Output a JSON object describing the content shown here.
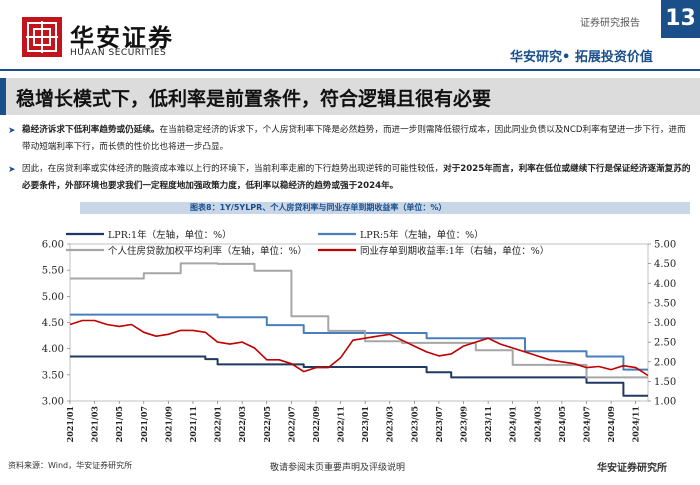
{
  "header": {
    "brand_cn": "华安证券",
    "brand_en": "HUAAN SECURITIES",
    "report_type": "证券研究报告",
    "page_number": "13",
    "slogan": "华安研究• 拓展投资价值",
    "accent_color": "#1a4f8a",
    "brand_color": "#c4141b"
  },
  "title": "稳增长模式下，低利率是前置条件，符合逻辑且很有必要",
  "bullets": [
    {
      "bold": "稳经济诉求下低利率趋势或仍延续。",
      "text": "在当前稳定经济的诉求下，个人房贷利率下降是必然趋势，而进一步则需降低银行成本，因此同业负债以及NCD利率有望进一步下行，进而带动短端利率下行，而长债的性价比也将进一步凸显。"
    },
    {
      "text_pre": "因此，在房贷利率或实体经济的融资成本难以上行的环境下，当前利率走廊的下行趋势出现逆转的可能性较低，",
      "bold": "对于2025年而言，利率在低位或继续下行是保证经济逐渐复苏的必要条件，外部环境也要求我们一定程度地加强政策力度，低利率以稳经济的趋势或强于2024年。"
    }
  ],
  "figure_caption": "图表8：1Y/5YLPR、个人房贷利率与同业存单到期收益率（单位：%）",
  "chart_data": {
    "type": "line",
    "left_axis": {
      "ylim": [
        3.0,
        6.0
      ],
      "ticks": [
        "3.00",
        "3.50",
        "4.00",
        "4.50",
        "5.00",
        "5.50",
        "6.00"
      ]
    },
    "right_axis": {
      "ylim": [
        1.0,
        5.0
      ],
      "ticks": [
        "1.00",
        "1.50",
        "2.00",
        "2.50",
        "3.00",
        "3.50",
        "4.00",
        "4.50",
        "5.00"
      ]
    },
    "x_ticks": [
      "2021/01",
      "2021/03",
      "2021/05",
      "2021/07",
      "2021/09",
      "2021/11",
      "2022/01",
      "2022/03",
      "2022/05",
      "2022/07",
      "2022/09",
      "2022/11",
      "2023/01",
      "2023/03",
      "2023/05",
      "2023/07",
      "2023/09",
      "2023/11",
      "2024/01",
      "2024/03",
      "2024/05",
      "2024/07",
      "2024/09",
      "2024/11"
    ],
    "legend": [
      "LPR:1年（左轴，单位：%）",
      "LPR:5年（左轴，单位：%）",
      "个人住房贷款加权平均利率（左轴，单位：%）",
      "同业存单到期收益率:1年（右轴，单位：%）"
    ],
    "series": [
      {
        "name": "LPR:1年（左轴，单位：%）",
        "axis": "left",
        "color": "#1f3864",
        "shape": "step",
        "points": [
          [
            "2021/01",
            3.85
          ],
          [
            "2021/12",
            3.8
          ],
          [
            "2022/01",
            3.7
          ],
          [
            "2022/08",
            3.65
          ],
          [
            "2023/06",
            3.55
          ],
          [
            "2023/08",
            3.45
          ],
          [
            "2024/07",
            3.35
          ],
          [
            "2024/10",
            3.1
          ],
          [
            "2024/12",
            3.1
          ]
        ]
      },
      {
        "name": "LPR:5年（左轴，单位：%）",
        "axis": "left",
        "color": "#4a7ebb",
        "shape": "step",
        "points": [
          [
            "2021/01",
            4.65
          ],
          [
            "2022/01",
            4.6
          ],
          [
            "2022/05",
            4.45
          ],
          [
            "2022/08",
            4.3
          ],
          [
            "2023/06",
            4.2
          ],
          [
            "2024/02",
            3.95
          ],
          [
            "2024/07",
            3.85
          ],
          [
            "2024/10",
            3.6
          ],
          [
            "2024/12",
            3.6
          ]
        ]
      },
      {
        "name": "个人住房贷款加权平均利率（左轴，单位：%）",
        "axis": "left",
        "color": "#a6a6a6",
        "shape": "step",
        "points": [
          [
            "2021/01",
            5.34
          ],
          [
            "2021/04",
            5.34
          ],
          [
            "2021/07",
            5.44
          ],
          [
            "2021/10",
            5.63
          ],
          [
            "2022/01",
            5.62
          ],
          [
            "2022/04",
            5.49
          ],
          [
            "2022/07",
            4.62
          ],
          [
            "2022/10",
            4.34
          ],
          [
            "2023/01",
            4.14
          ],
          [
            "2023/04",
            4.11
          ],
          [
            "2023/07",
            4.11
          ],
          [
            "2023/10",
            3.97
          ],
          [
            "2024/01",
            3.69
          ],
          [
            "2024/04",
            3.69
          ],
          [
            "2024/07",
            3.45
          ],
          [
            "2024/10",
            3.45
          ],
          [
            "2024/12",
            3.45
          ]
        ]
      },
      {
        "name": "同业存单到期收益率:1年（右轴，单位：%）",
        "axis": "right",
        "color": "#c00000",
        "shape": "line",
        "points": [
          [
            "2021/01",
            2.95
          ],
          [
            "2021/02",
            3.05
          ],
          [
            "2021/03",
            3.05
          ],
          [
            "2021/04",
            2.95
          ],
          [
            "2021/05",
            2.9
          ],
          [
            "2021/06",
            2.95
          ],
          [
            "2021/07",
            2.75
          ],
          [
            "2021/08",
            2.65
          ],
          [
            "2021/09",
            2.7
          ],
          [
            "2021/10",
            2.8
          ],
          [
            "2021/11",
            2.8
          ],
          [
            "2021/12",
            2.75
          ],
          [
            "2022/01",
            2.5
          ],
          [
            "2022/02",
            2.45
          ],
          [
            "2022/03",
            2.5
          ],
          [
            "2022/04",
            2.35
          ],
          [
            "2022/05",
            2.05
          ],
          [
            "2022/06",
            2.05
          ],
          [
            "2022/07",
            1.95
          ],
          [
            "2022/08",
            1.75
          ],
          [
            "2022/09",
            1.85
          ],
          [
            "2022/10",
            1.85
          ],
          [
            "2022/11",
            2.1
          ],
          [
            "2022/12",
            2.55
          ],
          [
            "2023/01",
            2.6
          ],
          [
            "2023/02",
            2.65
          ],
          [
            "2023/03",
            2.7
          ],
          [
            "2023/04",
            2.55
          ],
          [
            "2023/05",
            2.4
          ],
          [
            "2023/06",
            2.25
          ],
          [
            "2023/07",
            2.15
          ],
          [
            "2023/08",
            2.2
          ],
          [
            "2023/09",
            2.4
          ],
          [
            "2023/10",
            2.5
          ],
          [
            "2023/11",
            2.6
          ],
          [
            "2023/12",
            2.45
          ],
          [
            "2024/01",
            2.35
          ],
          [
            "2024/02",
            2.25
          ],
          [
            "2024/03",
            2.15
          ],
          [
            "2024/04",
            2.05
          ],
          [
            "2024/05",
            2.0
          ],
          [
            "2024/06",
            1.95
          ],
          [
            "2024/07",
            1.85
          ],
          [
            "2024/08",
            1.88
          ],
          [
            "2024/09",
            1.8
          ],
          [
            "2024/10",
            1.9
          ],
          [
            "2024/11",
            1.85
          ],
          [
            "2024/12",
            1.65
          ]
        ]
      }
    ]
  },
  "footer": {
    "source": "资料来源：Wind，华安证券研究所",
    "disclaimer": "敬请参阅末页重要声明及评级说明",
    "brand": "华安证券研究所"
  }
}
